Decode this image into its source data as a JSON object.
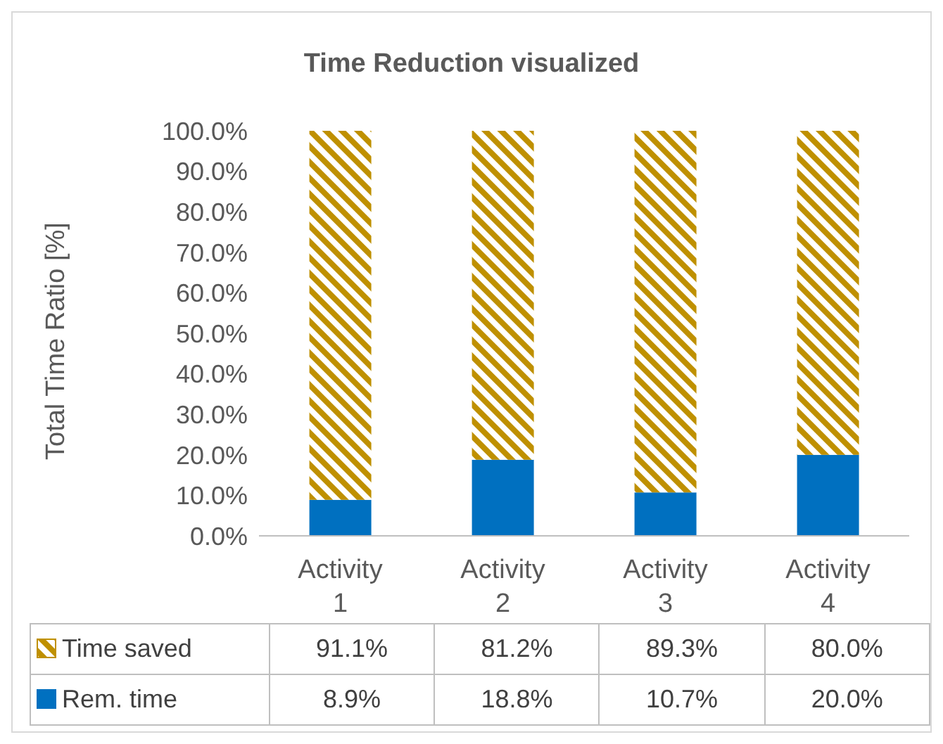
{
  "chart_data": {
    "type": "bar",
    "title": "Time Reduction visualized",
    "ylabel": "Total Time Ratio [%]",
    "categories": [
      "Activity 1",
      "Activity 2",
      "Activity 3",
      "Activity 4"
    ],
    "stacked": true,
    "series": [
      {
        "name": "Rem. time",
        "color": "#0070c0",
        "values": [
          8.9,
          18.8,
          10.7,
          20.0
        ],
        "value_labels": [
          "8.9%",
          "18.8%",
          "10.7%",
          "20.0%"
        ]
      },
      {
        "name": "Time saved",
        "color": "#bf9000",
        "values": [
          91.1,
          81.2,
          89.3,
          80.0
        ],
        "value_labels": [
          "91.1%",
          "81.2%",
          "89.3%",
          "80.0%"
        ]
      }
    ],
    "ylim": [
      0,
      100
    ],
    "yticks": [
      {
        "value": 0,
        "label": "0.0%"
      },
      {
        "value": 10,
        "label": "10.0%"
      },
      {
        "value": 20,
        "label": "20.0%"
      },
      {
        "value": 30,
        "label": "30.0%"
      },
      {
        "value": 40,
        "label": "40.0%"
      },
      {
        "value": 50,
        "label": "50.0%"
      },
      {
        "value": 60,
        "label": "60.0%"
      },
      {
        "value": 70,
        "label": "70.0%"
      },
      {
        "value": 80,
        "label": "80.0%"
      },
      {
        "value": 90,
        "label": "90.0%"
      },
      {
        "value": 100,
        "label": "100.0%"
      }
    ],
    "grid": false,
    "legend": "bottom"
  }
}
